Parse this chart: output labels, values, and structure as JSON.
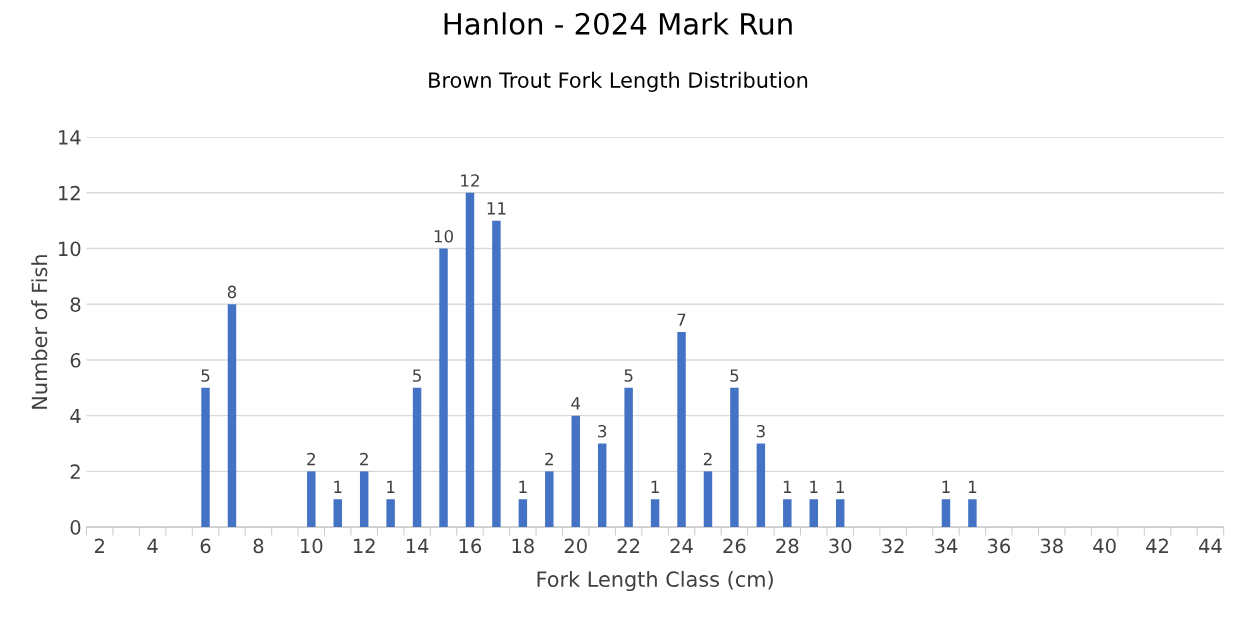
{
  "chart_data": {
    "type": "bar",
    "title": "Hanlon - 2024 Mark Run",
    "subtitle": "Brown Trout Fork Length Distribution",
    "xlabel": "Fork Length Class (cm)",
    "ylabel": "Number of Fish",
    "categories": [
      "2",
      null,
      "4",
      null,
      "6",
      null,
      "8",
      null,
      "10",
      null,
      "12",
      null,
      "14",
      null,
      "16",
      null,
      "18",
      null,
      "20",
      null,
      "22",
      null,
      "24",
      null,
      "26",
      null,
      "28",
      null,
      "30",
      null,
      "32",
      null,
      "34",
      null,
      "36",
      null,
      "38",
      null,
      "40",
      null,
      "42",
      null,
      "44"
    ],
    "values": [
      null,
      null,
      null,
      null,
      5,
      8,
      null,
      null,
      2,
      1,
      2,
      1,
      5,
      10,
      12,
      11,
      1,
      2,
      4,
      3,
      5,
      1,
      7,
      2,
      5,
      3,
      1,
      1,
      1,
      null,
      null,
      null,
      1,
      1,
      null,
      null,
      null,
      null,
      null,
      null,
      null,
      null,
      null
    ],
    "color": "#4472c4",
    "ylim": [
      0,
      14
    ],
    "yticks": [
      0,
      2,
      4,
      6,
      8,
      10,
      12,
      14
    ],
    "grid": "y",
    "data_labels": true
  }
}
